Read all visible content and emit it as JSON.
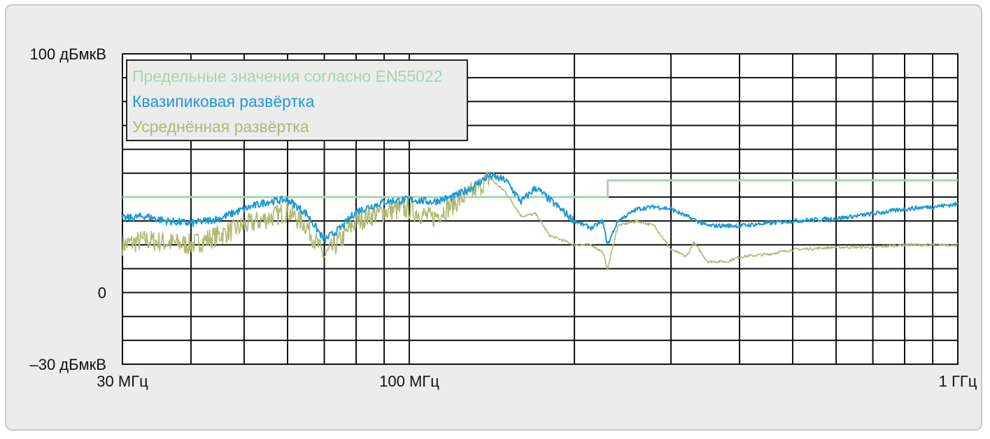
{
  "chart_data": {
    "type": "line",
    "title": "",
    "xlabel": "",
    "ylabel": "",
    "x_scale": "log",
    "xlim": [
      30,
      1000
    ],
    "ylim": [
      -30,
      100
    ],
    "grid": true,
    "legend_position": "top-left",
    "y_tick_labels": [
      {
        "value": 100,
        "label": "100 дБмкВ"
      },
      {
        "value": 0,
        "label": "0"
      },
      {
        "value": -30,
        "label": "–30 дБмкВ"
      }
    ],
    "x_tick_labels": [
      {
        "value": 30,
        "label": "30 МГц"
      },
      {
        "value": 100,
        "label": "100 МГц"
      },
      {
        "value": 1000,
        "label": "1 ГГц"
      }
    ],
    "series": [
      {
        "name": "Предельные значения согласно EN55022",
        "color": "#a6d4b4",
        "x": [
          30,
          230,
          230,
          1000
        ],
        "y": [
          40,
          40,
          47,
          47
        ]
      },
      {
        "name": "Квазипиковая развёртка",
        "color": "#1e9ad6",
        "x": [
          30,
          33,
          36,
          40,
          45,
          50,
          55,
          60,
          65,
          70,
          75,
          80,
          90,
          100,
          110,
          120,
          130,
          140,
          150,
          160,
          170,
          180,
          200,
          215,
          225,
          230,
          240,
          260,
          280,
          300,
          320,
          350,
          400,
          450,
          500,
          600,
          700,
          800,
          900,
          1000
        ],
        "y": [
          31,
          32,
          30,
          29,
          31,
          35,
          38,
          39,
          33,
          22,
          27,
          34,
          38,
          39,
          38,
          40,
          44,
          49,
          47,
          38,
          44,
          39,
          30,
          27,
          30,
          20,
          30,
          35,
          36,
          35,
          32,
          28,
          28,
          29,
          30,
          31,
          33,
          35,
          36,
          37
        ]
      },
      {
        "name": "Усреднённая развёртка",
        "color": "#b1b873",
        "x": [
          30,
          33,
          36,
          40,
          45,
          50,
          55,
          60,
          65,
          70,
          75,
          80,
          90,
          100,
          110,
          120,
          130,
          140,
          150,
          160,
          170,
          180,
          200,
          215,
          225,
          230,
          240,
          260,
          280,
          300,
          320,
          330,
          350,
          380,
          400,
          450,
          500,
          600,
          700,
          800,
          900,
          1000
        ],
        "y": [
          20,
          22,
          21,
          20,
          24,
          28,
          31,
          34,
          28,
          15,
          22,
          30,
          34,
          35,
          31,
          37,
          42,
          48,
          42,
          32,
          33,
          24,
          20,
          20,
          17,
          10,
          28,
          30,
          28,
          18,
          15,
          21,
          13,
          13,
          15,
          16,
          18,
          19,
          19,
          20,
          20,
          20
        ]
      }
    ]
  }
}
